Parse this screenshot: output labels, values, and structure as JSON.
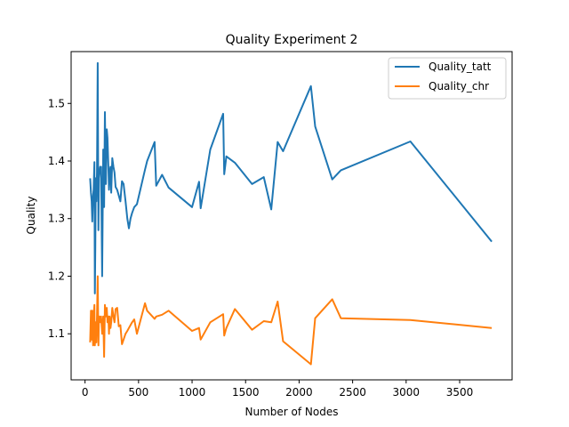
{
  "chart_data": {
    "type": "line",
    "title": "Quality Experiment 2",
    "xlabel": "Number of Nodes",
    "ylabel": "Quality",
    "xlim": [
      -130,
      3990
    ],
    "ylim": [
      1.02,
      1.59
    ],
    "xticks": [
      0,
      500,
      1000,
      1500,
      2000,
      2500,
      3000,
      3500
    ],
    "yticks": [
      1.1,
      1.2,
      1.3,
      1.4,
      1.5
    ],
    "xtick_labels": [
      "0",
      "500",
      "1000",
      "1500",
      "2000",
      "2500",
      "3000",
      "3500"
    ],
    "ytick_labels": [
      "1.1",
      "1.2",
      "1.3",
      "1.4",
      "1.5"
    ],
    "legend_position": "upper-right",
    "grid": false,
    "series": [
      {
        "name": "Quality_tatt",
        "color": "#1f77b4",
        "x": [
          48,
          55,
          62,
          68,
          75,
          80,
          88,
          92,
          96,
          100,
          106,
          112,
          118,
          125,
          130,
          135,
          142,
          150,
          160,
          170,
          178,
          186,
          195,
          203,
          210,
          218,
          224,
          230,
          238,
          245,
          255,
          265,
          275,
          285,
          300,
          315,
          330,
          345,
          360,
          378,
          395,
          410,
          425,
          440,
          460,
          485,
          560,
          580,
          650,
          665,
          720,
          780,
          1000,
          1065,
          1080,
          1170,
          1290,
          1300,
          1320,
          1400,
          1560,
          1670,
          1740,
          1800,
          1850,
          2110,
          2150,
          2310,
          2390,
          3040,
          3800
        ],
        "y": [
          1.37,
          1.345,
          1.33,
          1.295,
          1.34,
          1.35,
          1.398,
          1.17,
          1.25,
          1.37,
          1.33,
          1.38,
          1.57,
          1.28,
          1.37,
          1.38,
          1.39,
          1.39,
          1.2,
          1.42,
          1.32,
          1.485,
          1.36,
          1.455,
          1.44,
          1.39,
          1.35,
          1.38,
          1.39,
          1.345,
          1.405,
          1.39,
          1.38,
          1.355,
          1.35,
          1.34,
          1.33,
          1.365,
          1.36,
          1.33,
          1.3,
          1.283,
          1.3,
          1.31,
          1.32,
          1.325,
          1.385,
          1.4,
          1.433,
          1.357,
          1.376,
          1.354,
          1.32,
          1.364,
          1.318,
          1.42,
          1.482,
          1.377,
          1.408,
          1.397,
          1.36,
          1.372,
          1.316,
          1.433,
          1.417,
          1.53,
          1.46,
          1.368,
          1.384,
          1.434,
          1.26
        ]
      },
      {
        "name": "Quality_chr",
        "color": "#ff7f0e",
        "x": [
          48,
          55,
          62,
          68,
          75,
          80,
          88,
          92,
          96,
          100,
          106,
          112,
          118,
          125,
          130,
          135,
          142,
          150,
          160,
          170,
          178,
          186,
          195,
          203,
          210,
          218,
          224,
          230,
          238,
          245,
          255,
          265,
          275,
          285,
          300,
          315,
          330,
          345,
          360,
          378,
          395,
          410,
          425,
          440,
          460,
          485,
          560,
          580,
          650,
          665,
          720,
          780,
          1000,
          1065,
          1080,
          1170,
          1290,
          1300,
          1320,
          1400,
          1560,
          1670,
          1740,
          1800,
          1850,
          2110,
          2150,
          2310,
          2390,
          3040,
          3800
        ],
        "y": [
          1.085,
          1.14,
          1.09,
          1.14,
          1.08,
          1.13,
          1.15,
          1.08,
          1.1,
          1.12,
          1.085,
          1.13,
          1.2,
          1.08,
          1.13,
          1.13,
          1.12,
          1.13,
          1.1,
          1.13,
          1.06,
          1.15,
          1.13,
          1.145,
          1.12,
          1.13,
          1.1,
          1.13,
          1.11,
          1.12,
          1.145,
          1.13,
          1.12,
          1.143,
          1.145,
          1.113,
          1.115,
          1.082,
          1.09,
          1.1,
          1.105,
          1.11,
          1.115,
          1.12,
          1.125,
          1.1,
          1.153,
          1.14,
          1.126,
          1.13,
          1.133,
          1.14,
          1.105,
          1.11,
          1.09,
          1.12,
          1.134,
          1.097,
          1.11,
          1.143,
          1.107,
          1.122,
          1.12,
          1.156,
          1.087,
          1.047,
          1.127,
          1.16,
          1.127,
          1.124,
          1.11
        ]
      }
    ]
  }
}
